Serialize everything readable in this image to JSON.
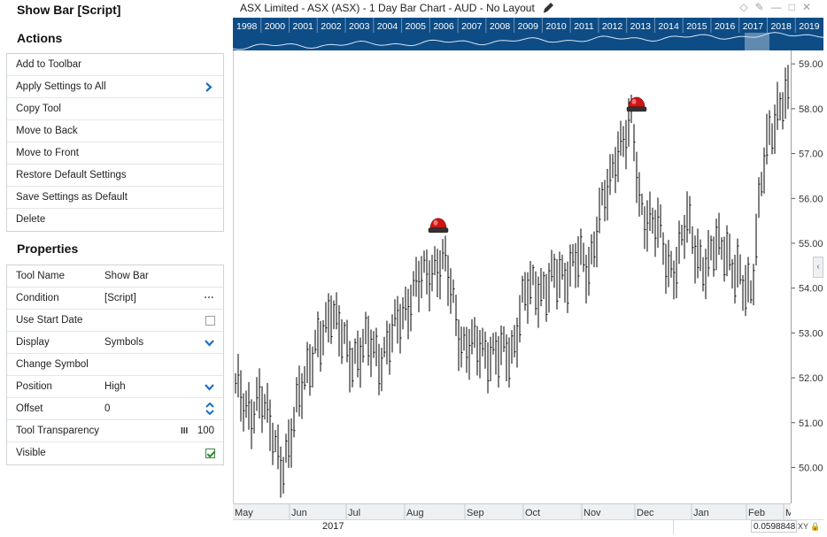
{
  "panel": {
    "title": "Show Bar [Script]",
    "actions_title": "Actions",
    "actions": [
      {
        "label": "Add to Toolbar"
      },
      {
        "label": "Apply Settings to All",
        "submenu": true
      },
      {
        "label": "Copy Tool"
      },
      {
        "label": "Move to Back"
      },
      {
        "label": "Move to Front"
      },
      {
        "label": "Restore Default Settings"
      },
      {
        "label": "Save Settings as Default"
      },
      {
        "label": "Delete"
      }
    ],
    "properties_title": "Properties",
    "properties": {
      "tool_name": {
        "label": "Tool Name",
        "value": "Show Bar"
      },
      "condition": {
        "label": "Condition",
        "value": "[Script]",
        "button": "···"
      },
      "use_start_date": {
        "label": "Use Start Date",
        "checked": false
      },
      "display": {
        "label": "Display",
        "value": "Symbols"
      },
      "change_symbol": {
        "label": "Change Symbol"
      },
      "position": {
        "label": "Position",
        "value": "High"
      },
      "offset": {
        "label": "Offset",
        "value": "0"
      },
      "tool_transparency": {
        "label": "Tool Transparency",
        "icon": "III",
        "value": "100"
      },
      "visible": {
        "label": "Visible",
        "checked": true
      }
    },
    "chevron_icon": "chevron-right-icon",
    "accent_color": "#1d6fc2"
  },
  "chart_window": {
    "title": "ASX Limited - ASX (ASX) - 1 Day Bar Chart - AUD - No Layout",
    "readout": "0.0598848",
    "xy_button": "XY",
    "side_tab": "‹"
  },
  "chart_data": {
    "type": "bar",
    "overview_years": [
      "1998",
      "2000",
      "2001",
      "2002",
      "2003",
      "2004",
      "2005",
      "2006",
      "2007",
      "2008",
      "2009",
      "2010",
      "2011",
      "2012",
      "2013",
      "2014",
      "2015",
      "2016",
      "2017",
      "2018",
      "2019"
    ],
    "x_month_labels": [
      "May",
      "Jun",
      "Jul",
      "Aug",
      "Sep",
      "Oct",
      "Nov",
      "Dec",
      "Jan",
      "Feb",
      "M"
    ],
    "x_year_label": "2017",
    "y_ticks": [
      "59.00",
      "58.00",
      "57.00",
      "56.00",
      "55.00",
      "54.00",
      "53.00",
      "52.00",
      "51.00",
      "50.00"
    ],
    "ylim": [
      49.2,
      59.3
    ],
    "overview_color": "#0e4c86",
    "bar_color": "#000000",
    "signal_markers": [
      {
        "label": "signal",
        "x_month": "Aug",
        "price": 55.3
      },
      {
        "label": "signal",
        "x_month": "Nov",
        "price": 58.0
      }
    ]
  }
}
